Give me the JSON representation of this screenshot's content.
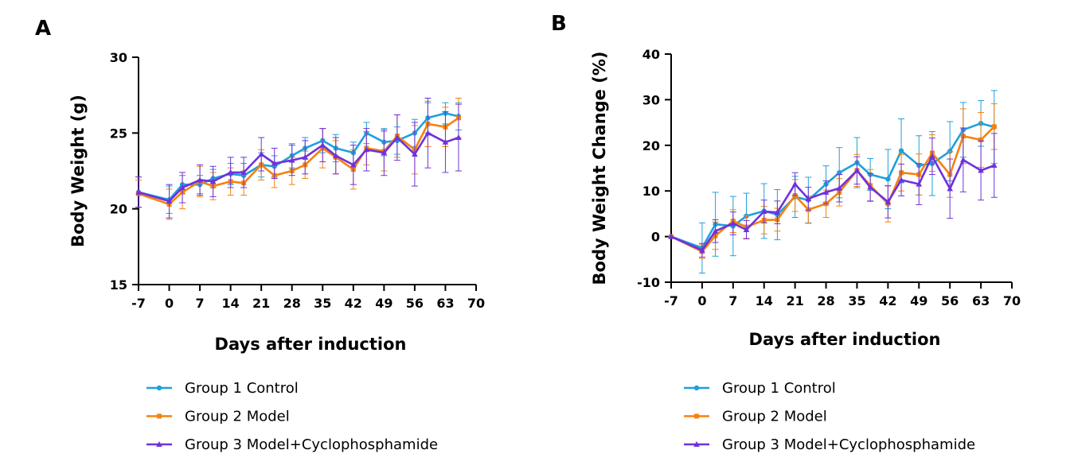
{
  "chart_data": [
    {
      "type": "line",
      "panel_label": "A",
      "xlabel": "Days after induction",
      "ylabel": "Body Weight (g)",
      "xlim": [
        -7,
        70
      ],
      "ylim": [
        15,
        30
      ],
      "xticks": [
        -7,
        0,
        7,
        14,
        21,
        28,
        35,
        42,
        49,
        56,
        63,
        70
      ],
      "yticks": [
        15,
        20,
        25,
        30
      ],
      "grid": false,
      "legend": "bottom",
      "series": [
        {
          "name": "Group 1 Control",
          "color": "#1ea0dc",
          "marker": "circle",
          "x": [
            -7,
            0,
            3,
            7,
            10,
            14,
            17,
            21,
            24,
            28,
            31,
            35,
            38,
            42,
            45,
            49,
            52,
            56,
            59,
            63,
            66
          ],
          "y": [
            21.1,
            20.6,
            21.6,
            21.6,
            22.0,
            22.3,
            22.2,
            22.9,
            22.8,
            23.5,
            24.0,
            24.5,
            24.0,
            23.7,
            25.0,
            24.4,
            24.5,
            25.0,
            26.0,
            26.3,
            26.1
          ],
          "err": [
            1.0,
            0.9,
            0.6,
            0.6,
            0.6,
            0.7,
            0.8,
            0.8,
            0.7,
            0.8,
            0.7,
            0.8,
            0.9,
            0.7,
            0.7,
            0.9,
            0.9,
            0.9,
            1.0,
            0.7,
            0.9
          ]
        },
        {
          "name": "Group 2 Model",
          "color": "#f5820f",
          "marker": "square",
          "x": [
            -7,
            0,
            3,
            7,
            10,
            14,
            17,
            21,
            24,
            28,
            31,
            35,
            38,
            42,
            45,
            49,
            52,
            56,
            59,
            63,
            66
          ],
          "y": [
            21.0,
            20.3,
            21.1,
            21.8,
            21.5,
            21.8,
            21.7,
            22.9,
            22.2,
            22.5,
            22.9,
            24.0,
            23.4,
            22.6,
            24.0,
            23.8,
            24.8,
            23.9,
            25.6,
            25.4,
            26.0
          ],
          "err": [
            0.9,
            1.0,
            1.1,
            1.0,
            0.9,
            0.9,
            0.8,
            1.0,
            0.8,
            0.9,
            0.9,
            1.3,
            1.1,
            1.3,
            1.1,
            1.3,
            1.4,
            1.6,
            1.5,
            1.3,
            1.3
          ]
        },
        {
          "name": "Group 3 Model+Cyclophosphamide",
          "color": "#6e32dc",
          "marker": "triangle",
          "x": [
            -7,
            0,
            3,
            7,
            10,
            14,
            17,
            21,
            24,
            28,
            31,
            35,
            38,
            42,
            45,
            49,
            52,
            56,
            59,
            63,
            66
          ],
          "y": [
            21.1,
            20.5,
            21.4,
            21.9,
            21.8,
            22.4,
            22.4,
            23.6,
            23.0,
            23.2,
            23.4,
            24.2,
            23.5,
            22.9,
            23.9,
            23.7,
            24.7,
            23.6,
            25.0,
            24.4,
            24.7
          ],
          "err": [
            1.0,
            1.1,
            1.0,
            1.0,
            1.0,
            1.0,
            1.0,
            1.1,
            1.0,
            1.0,
            1.1,
            1.1,
            1.2,
            1.3,
            1.4,
            1.5,
            1.5,
            2.1,
            2.3,
            2.0,
            2.2
          ]
        }
      ]
    },
    {
      "type": "line",
      "panel_label": "B",
      "xlabel": "Days after induction",
      "ylabel": "Body Weight Change (%)",
      "xlim": [
        -7,
        70
      ],
      "ylim": [
        -10,
        40
      ],
      "xticks": [
        -7,
        0,
        7,
        14,
        21,
        28,
        35,
        42,
        49,
        56,
        63,
        70
      ],
      "yticks": [
        -10,
        0,
        10,
        20,
        30,
        40
      ],
      "grid": false,
      "legend": "bottom",
      "series": [
        {
          "name": "Group 1 Control",
          "color": "#1ea0dc",
          "marker": "circle",
          "x": [
            -7,
            0,
            3,
            7,
            10,
            14,
            17,
            21,
            24,
            28,
            31,
            35,
            38,
            42,
            45,
            49,
            52,
            56,
            59,
            63,
            66
          ],
          "y": [
            0,
            -2.5,
            2.7,
            2.3,
            4.5,
            5.6,
            4.8,
            8.7,
            8.0,
            11.5,
            14.0,
            16.2,
            13.6,
            12.6,
            18.8,
            15.6,
            16.0,
            18.7,
            23.4,
            24.8,
            24.0
          ],
          "err": [
            0,
            5.5,
            7.0,
            6.5,
            5.0,
            6.0,
            5.5,
            4.5,
            5.0,
            4.0,
            5.5,
            5.5,
            3.5,
            6.5,
            7.0,
            6.5,
            7.0,
            6.5,
            6.0,
            5.0,
            8.0
          ]
        },
        {
          "name": "Group 2 Model",
          "color": "#f5820f",
          "marker": "square",
          "x": [
            -7,
            0,
            3,
            7,
            10,
            14,
            17,
            21,
            24,
            28,
            31,
            35,
            38,
            42,
            45,
            49,
            52,
            56,
            59,
            63,
            66
          ],
          "y": [
            0,
            -3.3,
            0.2,
            3.4,
            2.1,
            3.6,
            3.7,
            9.0,
            5.9,
            7.2,
            9.7,
            14.5,
            11.2,
            7.2,
            14.0,
            13.6,
            18.3,
            13.6,
            22.0,
            21.2,
            24.1
          ],
          "err": [
            0,
            1.5,
            3.0,
            2.5,
            2.5,
            3.0,
            2.5,
            3.5,
            3.0,
            3.0,
            3.0,
            3.5,
            3.5,
            4.0,
            4.0,
            4.5,
            4.0,
            5.0,
            6.0,
            6.0,
            5.0
          ]
        },
        {
          "name": "Group 3 Model+Cyclophosphamide",
          "color": "#6e32dc",
          "marker": "triangle",
          "x": [
            -7,
            0,
            3,
            7,
            10,
            14,
            17,
            21,
            24,
            28,
            31,
            35,
            38,
            42,
            45,
            49,
            52,
            56,
            59,
            63,
            66
          ],
          "y": [
            0,
            -3.0,
            1.2,
            2.9,
            1.5,
            5.5,
            5.3,
            11.5,
            8.3,
            9.7,
            10.6,
            14.5,
            10.8,
            7.6,
            12.4,
            11.5,
            17.6,
            10.5,
            16.8,
            14.5,
            15.6
          ],
          "err": [
            0,
            1.5,
            2.5,
            2.5,
            2.0,
            2.5,
            2.5,
            2.5,
            2.5,
            2.5,
            3.0,
            3.0,
            3.0,
            3.5,
            3.5,
            4.5,
            4.0,
            6.5,
            7.0,
            6.5,
            7.0
          ]
        }
      ]
    }
  ]
}
